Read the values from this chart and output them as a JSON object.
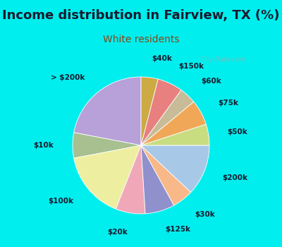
{
  "title": "Income distribution in Fairview, TX (%)",
  "subtitle": "White residents",
  "title_fontsize": 13,
  "subtitle_fontsize": 10,
  "title_color": "#1a1a2e",
  "subtitle_color": "#8B4513",
  "background_color": "#00EEEE",
  "chart_bg_left": "#d8ede0",
  "chart_bg_right": "#e8f0f8",
  "watermark": "City-Data.com",
  "labels": [
    "> $200k",
    "$10k",
    "$100k",
    "$20k",
    "$125k",
    "$30k",
    "$200k",
    "$50k",
    "$75k",
    "$60k",
    "$150k",
    "$40k"
  ],
  "values": [
    22,
    6,
    16,
    7,
    7,
    5,
    12,
    5,
    6,
    4,
    6,
    4
  ],
  "colors": [
    "#b8a0d8",
    "#a8bf90",
    "#eeeea0",
    "#f0a8b8",
    "#9090cc",
    "#f8b888",
    "#a8c8e8",
    "#c8dd80",
    "#f0a858",
    "#c8bc98",
    "#e88080",
    "#ccaa44"
  ],
  "startangle": 90,
  "label_fontsize": 7.5,
  "labeldistance": 1.28
}
